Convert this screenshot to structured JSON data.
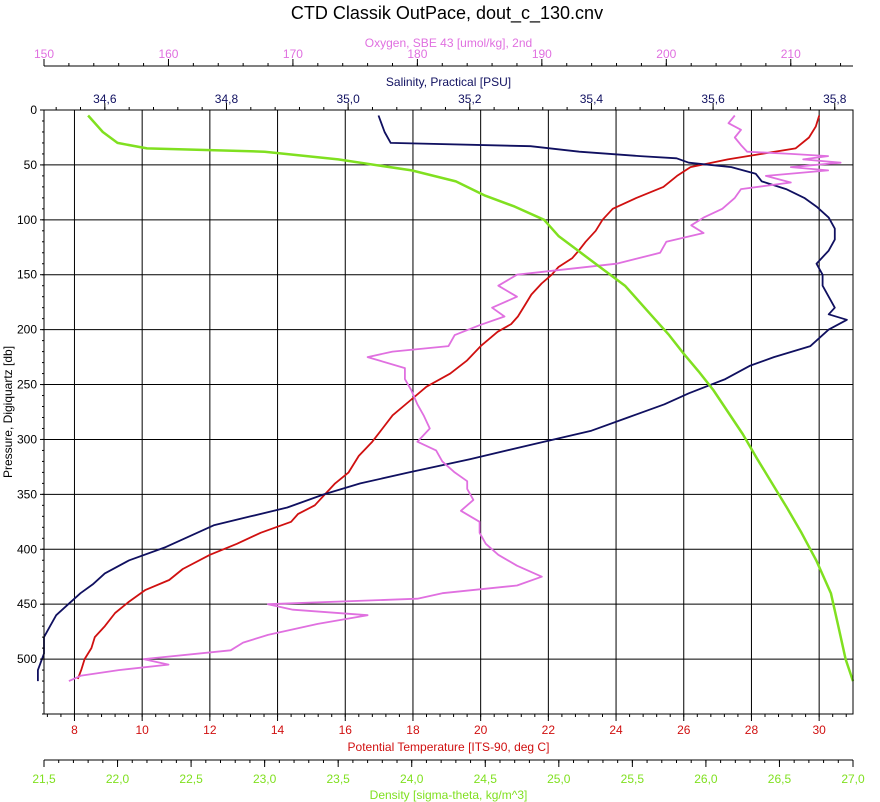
{
  "chart_data": {
    "type": "line",
    "title": "CTD Classik OutPace, dout_c_130.cnv",
    "y_axis": {
      "label": "Pressure, Digiquartz [db]",
      "range": [
        0,
        550
      ],
      "inverted": true,
      "ticks": [
        0,
        50,
        100,
        150,
        200,
        250,
        300,
        350,
        400,
        450,
        500
      ]
    },
    "x_axes": [
      {
        "id": "oxygen",
        "label": "Oxygen, SBE 43 [umol/kg], 2nd",
        "color": "#e070e0",
        "position": "top",
        "range": [
          150,
          215
        ],
        "ticks": [
          150,
          160,
          170,
          180,
          190,
          200,
          210
        ],
        "tick_labels": [
          "150",
          "160",
          "170",
          "180",
          "190",
          "200",
          "210"
        ]
      },
      {
        "id": "salinity",
        "label": "Salinity, Practical [PSU]",
        "color": "#101060",
        "position": "top",
        "range": [
          34.5,
          35.83
        ],
        "ticks": [
          34.6,
          34.8,
          35.0,
          35.2,
          35.4,
          35.6,
          35.8
        ],
        "tick_labels": [
          "34,6",
          "34,8",
          "35,0",
          "35,2",
          "35,4",
          "35,6",
          "35,8"
        ]
      },
      {
        "id": "temperature",
        "label": "Potential Temperature [ITS-90, deg C]",
        "color": "#d01010",
        "position": "bottom",
        "range": [
          7.1,
          31.0
        ],
        "ticks": [
          8,
          10,
          12,
          14,
          16,
          18,
          20,
          22,
          24,
          26,
          28,
          30
        ],
        "tick_labels": [
          "8",
          "10",
          "12",
          "14",
          "16",
          "18",
          "20",
          "22",
          "24",
          "26",
          "28",
          "30"
        ]
      },
      {
        "id": "density",
        "label": "Density [sigma-theta, kg/m^3]",
        "color": "#80e020",
        "position": "bottom",
        "range": [
          21.5,
          27.0
        ],
        "ticks": [
          21.5,
          22.0,
          22.5,
          23.0,
          23.5,
          24.0,
          24.5,
          25.0,
          25.5,
          26.0,
          26.5,
          27.0
        ],
        "tick_labels": [
          "21,5",
          "22,0",
          "22,5",
          "23,0",
          "23,5",
          "24,0",
          "24,5",
          "25,0",
          "25,5",
          "26,0",
          "26,5",
          "27,0"
        ]
      }
    ],
    "grid": true,
    "series": [
      {
        "axis": "temperature",
        "color": "#d01010",
        "points": [
          [
            30.0,
            5
          ],
          [
            29.9,
            15
          ],
          [
            29.7,
            25
          ],
          [
            29.3,
            35
          ],
          [
            28.3,
            40
          ],
          [
            27.3,
            45
          ],
          [
            26.2,
            52
          ],
          [
            25.8,
            60
          ],
          [
            25.4,
            70
          ],
          [
            24.6,
            80
          ],
          [
            23.9,
            90
          ],
          [
            23.6,
            100
          ],
          [
            23.4,
            110
          ],
          [
            23.1,
            120
          ],
          [
            22.9,
            128
          ],
          [
            22.7,
            135
          ],
          [
            22.3,
            143
          ],
          [
            22.1,
            150
          ],
          [
            21.8,
            158
          ],
          [
            21.5,
            168
          ],
          [
            21.3,
            178
          ],
          [
            21.1,
            188
          ],
          [
            20.9,
            195
          ],
          [
            20.5,
            202
          ],
          [
            20.0,
            215
          ],
          [
            19.6,
            228
          ],
          [
            19.1,
            240
          ],
          [
            18.4,
            252
          ],
          [
            17.9,
            265
          ],
          [
            17.4,
            278
          ],
          [
            17.1,
            290
          ],
          [
            16.8,
            302
          ],
          [
            16.4,
            315
          ],
          [
            16.1,
            330
          ],
          [
            15.7,
            340
          ],
          [
            15.4,
            350
          ],
          [
            15.1,
            360
          ],
          [
            14.6,
            368
          ],
          [
            14.4,
            375
          ],
          [
            13.5,
            385
          ],
          [
            12.8,
            395
          ],
          [
            12.0,
            405
          ],
          [
            11.2,
            418
          ],
          [
            10.8,
            428
          ],
          [
            10.1,
            437
          ],
          [
            9.6,
            448
          ],
          [
            9.2,
            458
          ],
          [
            8.9,
            470
          ],
          [
            8.6,
            480
          ],
          [
            8.5,
            490
          ],
          [
            8.3,
            500
          ],
          [
            8.2,
            510
          ],
          [
            8.1,
            518
          ]
        ]
      },
      {
        "axis": "salinity",
        "color": "#101060",
        "points": [
          [
            35.05,
            5
          ],
          [
            35.06,
            20
          ],
          [
            35.07,
            30
          ],
          [
            35.3,
            33
          ],
          [
            35.38,
            38
          ],
          [
            35.48,
            42
          ],
          [
            35.54,
            44
          ],
          [
            35.56,
            48
          ],
          [
            35.63,
            52
          ],
          [
            35.67,
            58
          ],
          [
            35.68,
            65
          ],
          [
            35.72,
            72
          ],
          [
            35.75,
            80
          ],
          [
            35.77,
            88
          ],
          [
            35.79,
            98
          ],
          [
            35.8,
            108
          ],
          [
            35.8,
            118
          ],
          [
            35.79,
            128
          ],
          [
            35.77,
            140
          ],
          [
            35.78,
            150
          ],
          [
            35.78,
            160
          ],
          [
            35.79,
            170
          ],
          [
            35.8,
            180
          ],
          [
            35.79,
            186
          ],
          [
            35.82,
            191
          ],
          [
            35.79,
            200
          ],
          [
            35.76,
            215
          ],
          [
            35.7,
            225
          ],
          [
            35.66,
            233
          ],
          [
            35.62,
            245
          ],
          [
            35.56,
            258
          ],
          [
            35.52,
            268
          ],
          [
            35.46,
            280
          ],
          [
            35.4,
            292
          ],
          [
            35.3,
            305
          ],
          [
            35.2,
            318
          ],
          [
            35.1,
            330
          ],
          [
            35.02,
            340
          ],
          [
            34.96,
            350
          ],
          [
            34.9,
            362
          ],
          [
            34.84,
            370
          ],
          [
            34.78,
            378
          ],
          [
            34.74,
            388
          ],
          [
            34.7,
            398
          ],
          [
            34.64,
            410
          ],
          [
            34.6,
            422
          ],
          [
            34.58,
            432
          ],
          [
            34.56,
            440
          ],
          [
            34.54,
            450
          ],
          [
            34.52,
            460
          ],
          [
            34.51,
            470
          ],
          [
            34.5,
            480
          ],
          [
            34.5,
            495
          ],
          [
            34.49,
            510
          ],
          [
            34.49,
            520
          ]
        ]
      },
      {
        "axis": "oxygen",
        "color": "#e070e0",
        "points": [
          [
            205.5,
            5
          ],
          [
            205.0,
            12
          ],
          [
            206.0,
            18
          ],
          [
            205.5,
            25
          ],
          [
            206.0,
            32
          ],
          [
            206.5,
            38
          ],
          [
            210.0,
            40
          ],
          [
            213.0,
            42
          ],
          [
            211.0,
            45
          ],
          [
            214.0,
            48
          ],
          [
            210.0,
            52
          ],
          [
            213.0,
            55
          ],
          [
            208.0,
            60
          ],
          [
            210.0,
            66
          ],
          [
            206.0,
            72
          ],
          [
            205.5,
            80
          ],
          [
            204.5,
            90
          ],
          [
            203.0,
            98
          ],
          [
            202.0,
            105
          ],
          [
            203.0,
            112
          ],
          [
            200.0,
            120
          ],
          [
            199.5,
            130
          ],
          [
            196.0,
            140
          ],
          [
            192.0,
            145
          ],
          [
            188.0,
            150
          ],
          [
            186.5,
            160
          ],
          [
            188.0,
            170
          ],
          [
            186.0,
            180
          ],
          [
            187.0,
            188
          ],
          [
            185.0,
            196
          ],
          [
            183.0,
            205
          ],
          [
            182.5,
            215
          ],
          [
            178.0,
            220
          ],
          [
            176.0,
            225
          ],
          [
            179.0,
            235
          ],
          [
            179.0,
            245
          ],
          [
            179.5,
            255
          ],
          [
            180.0,
            268
          ],
          [
            180.5,
            278
          ],
          [
            181.0,
            290
          ],
          [
            180.0,
            302
          ],
          [
            181.5,
            310
          ],
          [
            182.0,
            320
          ],
          [
            183.0,
            330
          ],
          [
            184.0,
            338
          ],
          [
            184.0,
            345
          ],
          [
            184.5,
            355
          ],
          [
            183.5,
            365
          ],
          [
            185.0,
            375
          ],
          [
            185.0,
            385
          ],
          [
            185.5,
            395
          ],
          [
            186.5,
            405
          ],
          [
            188.0,
            415
          ],
          [
            190.0,
            425
          ],
          [
            188.0,
            433
          ],
          [
            182.0,
            440
          ],
          [
            180.0,
            445
          ],
          [
            168.0,
            450
          ],
          [
            170.0,
            455
          ],
          [
            176.0,
            460
          ],
          [
            172.0,
            468
          ],
          [
            168.0,
            478
          ],
          [
            166.0,
            485
          ],
          [
            165.0,
            492
          ],
          [
            158.0,
            500
          ],
          [
            160.0,
            505
          ],
          [
            156.0,
            510
          ],
          [
            153.0,
            515
          ],
          [
            152.0,
            520
          ]
        ]
      },
      {
        "axis": "density",
        "color": "#80e020",
        "points": [
          [
            21.8,
            5
          ],
          [
            21.9,
            20
          ],
          [
            22.0,
            30
          ],
          [
            22.2,
            35
          ],
          [
            23.0,
            38
          ],
          [
            23.5,
            45
          ],
          [
            24.0,
            55
          ],
          [
            24.3,
            65
          ],
          [
            24.5,
            78
          ],
          [
            24.7,
            88
          ],
          [
            24.9,
            100
          ],
          [
            25.0,
            115
          ],
          [
            25.15,
            130
          ],
          [
            25.3,
            145
          ],
          [
            25.45,
            160
          ],
          [
            25.55,
            175
          ],
          [
            25.65,
            190
          ],
          [
            25.75,
            205
          ],
          [
            25.85,
            222
          ],
          [
            25.95,
            238
          ],
          [
            26.05,
            255
          ],
          [
            26.15,
            275
          ],
          [
            26.25,
            295
          ],
          [
            26.35,
            318
          ],
          [
            26.45,
            340
          ],
          [
            26.55,
            362
          ],
          [
            26.65,
            385
          ],
          [
            26.75,
            410
          ],
          [
            26.85,
            440
          ],
          [
            26.9,
            470
          ],
          [
            26.95,
            500
          ],
          [
            27.0,
            520
          ]
        ]
      }
    ]
  }
}
